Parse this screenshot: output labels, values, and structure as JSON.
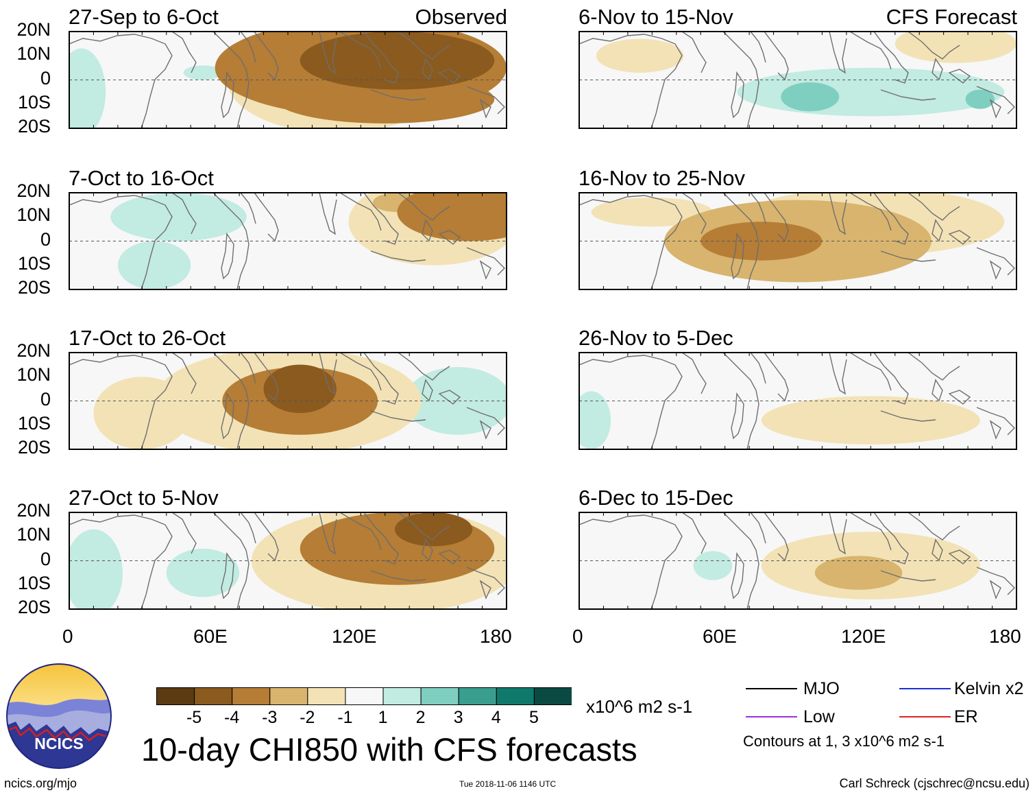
{
  "chart_data": {
    "type": "heatmap",
    "title": "10-day CHI850 with CFS forecasts",
    "x_range": [
      0,
      180
    ],
    "y_range": [
      -20,
      20
    ],
    "x_ticks": [
      "0",
      "60E",
      "120E",
      "180"
    ],
    "y_ticks": [
      "20N",
      "10N",
      "0",
      "10S",
      "20S"
    ],
    "panels": [
      {
        "title": "27-Sep to 6-Oct",
        "label": "Observed",
        "column": "left",
        "row": 0,
        "anomalies": [
          {
            "lon": 135,
            "lat": 8,
            "rx": 40,
            "ry": 12,
            "value": -4.2
          },
          {
            "lon": 120,
            "lat": 5,
            "rx": 60,
            "ry": 20,
            "value": -3.2
          },
          {
            "lon": 130,
            "lat": -8,
            "rx": 45,
            "ry": 10,
            "value": -3.0
          },
          {
            "lon": 110,
            "lat": 0,
            "rx": 45,
            "ry": 22,
            "value": -1.5
          },
          {
            "lon": 5,
            "lat": -5,
            "rx": 10,
            "ry": 18,
            "value": 1.5
          },
          {
            "lon": 55,
            "lat": 3,
            "rx": 8,
            "ry": 3,
            "value": 1.2
          }
        ]
      },
      {
        "title": "7-Oct to 16-Oct",
        "label": "",
        "column": "left",
        "row": 1,
        "anomalies": [
          {
            "lon": 165,
            "lat": 12,
            "rx": 30,
            "ry": 12,
            "value": -3.3
          },
          {
            "lon": 150,
            "lat": 8,
            "rx": 35,
            "ry": 18,
            "value": -1.6
          },
          {
            "lon": 135,
            "lat": 16,
            "rx": 10,
            "ry": 4,
            "value": -2.8
          },
          {
            "lon": 45,
            "lat": 10,
            "rx": 28,
            "ry": 10,
            "value": 1.5
          },
          {
            "lon": 35,
            "lat": -10,
            "rx": 15,
            "ry": 10,
            "value": 1.2
          }
        ]
      },
      {
        "title": "17-Oct to 26-Oct",
        "label": "",
        "column": "left",
        "row": 2,
        "anomalies": [
          {
            "lon": 95,
            "lat": 5,
            "rx": 15,
            "ry": 10,
            "value": -4.3
          },
          {
            "lon": 95,
            "lat": 0,
            "rx": 32,
            "ry": 14,
            "value": -3.2
          },
          {
            "lon": 90,
            "lat": 0,
            "rx": 55,
            "ry": 22,
            "value": -1.7
          },
          {
            "lon": 30,
            "lat": -5,
            "rx": 20,
            "ry": 15,
            "value": -1.5
          },
          {
            "lon": 160,
            "lat": 0,
            "rx": 22,
            "ry": 14,
            "value": 1.4
          }
        ]
      },
      {
        "title": "27-Oct to 5-Nov",
        "label": "",
        "column": "left",
        "row": 3,
        "anomalies": [
          {
            "lon": 150,
            "lat": 13,
            "rx": 16,
            "ry": 7,
            "value": -4.2
          },
          {
            "lon": 135,
            "lat": 5,
            "rx": 40,
            "ry": 15,
            "value": -3.2
          },
          {
            "lon": 130,
            "lat": 0,
            "rx": 55,
            "ry": 22,
            "value": -1.6
          },
          {
            "lon": 10,
            "lat": -5,
            "rx": 12,
            "ry": 18,
            "value": 1.4
          },
          {
            "lon": 55,
            "lat": -5,
            "rx": 15,
            "ry": 10,
            "value": 1.2
          }
        ]
      },
      {
        "title": "6-Nov to 15-Nov",
        "label": "CFS Forecast",
        "column": "right",
        "row": 0,
        "anomalies": [
          {
            "lon": 120,
            "lat": -5,
            "rx": 55,
            "ry": 10,
            "value": 1.5
          },
          {
            "lon": 95,
            "lat": -7,
            "rx": 12,
            "ry": 6,
            "value": 2.4
          },
          {
            "lon": 165,
            "lat": -8,
            "rx": 6,
            "ry": 4,
            "value": 2.2
          },
          {
            "lon": 25,
            "lat": 10,
            "rx": 18,
            "ry": 7,
            "value": -1.4
          },
          {
            "lon": 155,
            "lat": 15,
            "rx": 25,
            "ry": 8,
            "value": -1.2
          }
        ]
      },
      {
        "title": "16-Nov to 25-Nov",
        "label": "",
        "column": "right",
        "row": 1,
        "anomalies": [
          {
            "lon": 75,
            "lat": 0,
            "rx": 25,
            "ry": 8,
            "value": -3.1
          },
          {
            "lon": 90,
            "lat": 0,
            "rx": 55,
            "ry": 17,
            "value": -2.1
          },
          {
            "lon": 120,
            "lat": 8,
            "rx": 55,
            "ry": 14,
            "value": -1.5
          },
          {
            "lon": 30,
            "lat": 12,
            "rx": 25,
            "ry": 6,
            "value": -1.4
          }
        ]
      },
      {
        "title": "26-Nov to 5-Dec",
        "label": "",
        "column": "right",
        "row": 2,
        "anomalies": [
          {
            "lon": 120,
            "lat": -8,
            "rx": 45,
            "ry": 10,
            "value": -1.4
          },
          {
            "lon": 5,
            "lat": -8,
            "rx": 8,
            "ry": 12,
            "value": 1.3
          }
        ]
      },
      {
        "title": "6-Dec to 15-Dec",
        "label": "",
        "column": "right",
        "row": 3,
        "anomalies": [
          {
            "lon": 115,
            "lat": -5,
            "rx": 18,
            "ry": 7,
            "value": -2.2
          },
          {
            "lon": 120,
            "lat": -2,
            "rx": 45,
            "ry": 14,
            "value": -1.4
          },
          {
            "lon": 55,
            "lat": -2,
            "rx": 8,
            "ry": 6,
            "value": 1.3
          }
        ]
      }
    ],
    "colorbar": {
      "levels": [
        "-5",
        "-4",
        "-3",
        "-2",
        "-1",
        "1",
        "2",
        "3",
        "4",
        "5"
      ],
      "colors": [
        "#5c3a12",
        "#8b5a1e",
        "#b57d35",
        "#d8b46e",
        "#f2e2b6",
        "#f7f7f7",
        "#c2ebe2",
        "#7fcfc0",
        "#3a9e8f",
        "#0f7a6c",
        "#0a4a42"
      ],
      "units": "x10^6 m2 s-1"
    },
    "legend": [
      {
        "name": "MJO",
        "color": "#000000"
      },
      {
        "name": "Kelvin x2",
        "color": "#1a2fd6"
      },
      {
        "name": "Low",
        "color": "#9b30e0"
      },
      {
        "name": "ER",
        "color": "#e02020"
      }
    ],
    "contours_note": "Contours at 1, 3 x10^6 m2 s-1"
  },
  "logo": {
    "text": "NCICS"
  },
  "footer": {
    "left": "ncics.org/mjo",
    "center": "Tue 2018-11-06 1146 UTC",
    "right": "Carl Schreck (cjschrec@ncsu.edu)"
  }
}
